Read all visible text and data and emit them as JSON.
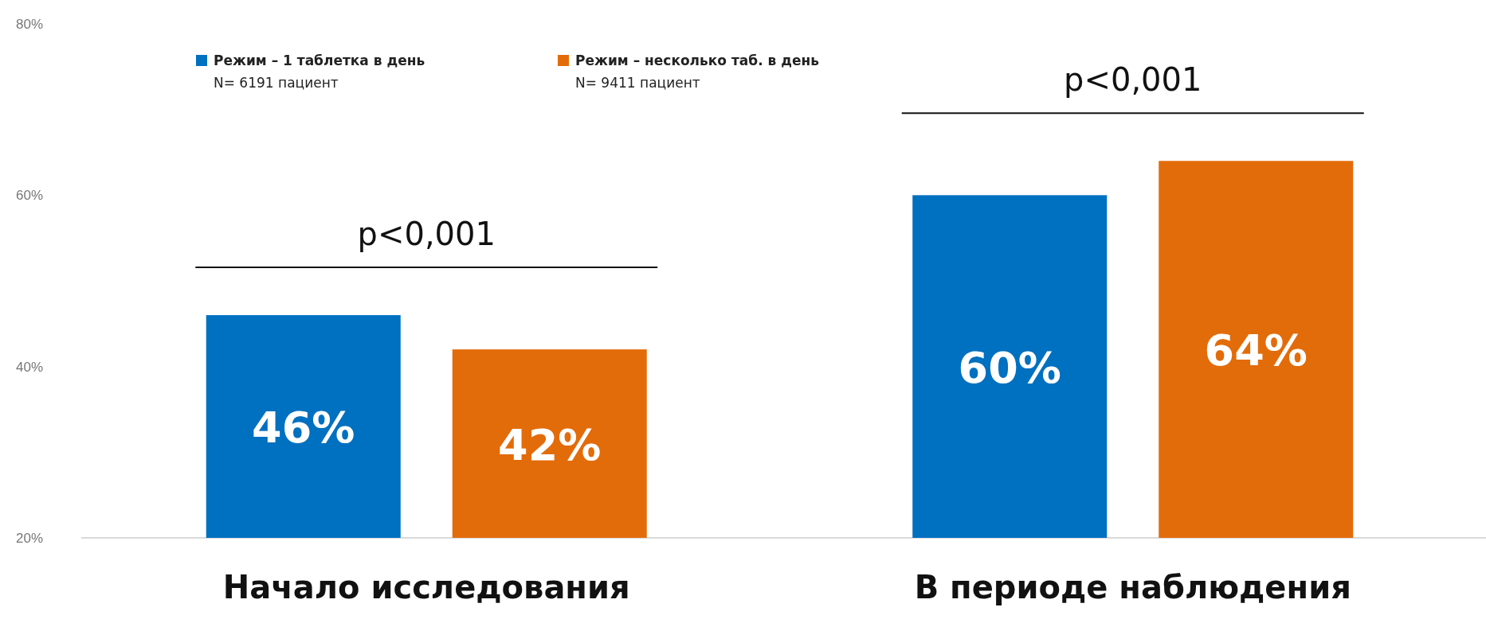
{
  "chart_data": {
    "type": "bar",
    "categories": [
      "Начало исследования",
      "В периоде наблюдения"
    ],
    "series": [
      {
        "name": "Режим – 1 таблетка в день\nN= 6191 пациент",
        "color": "#0070c0",
        "values": [
          46,
          60
        ],
        "value_labels": [
          "46%",
          "60%"
        ]
      },
      {
        "name": "Режим – несколько таб. в день\nN= 9411 пациент",
        "color": "#e36c0a",
        "values": [
          42,
          64
        ],
        "value_labels": [
          "42%",
          "64%"
        ]
      }
    ],
    "ylim": [
      20,
      80
    ],
    "yticks": [
      {
        "value": 20,
        "label": "20%"
      },
      {
        "value": 40,
        "label": "40%"
      },
      {
        "value": 60,
        "label": "60%"
      },
      {
        "value": 80,
        "label": "80%"
      }
    ],
    "grid": false,
    "legend": "top left",
    "annotations": [
      "p<0,001",
      "p<0,001"
    ]
  }
}
